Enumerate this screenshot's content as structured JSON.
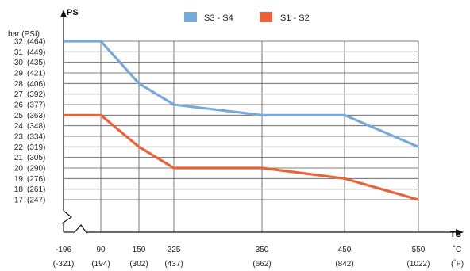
{
  "chart_data": {
    "type": "line",
    "y_axis": {
      "title": "PS",
      "unit_label": "bar (PSI)",
      "ticks": [
        {
          "bar": 32,
          "psi": 464
        },
        {
          "bar": 31,
          "psi": 449
        },
        {
          "bar": 30,
          "psi": 435
        },
        {
          "bar": 29,
          "psi": 421
        },
        {
          "bar": 28,
          "psi": 406
        },
        {
          "bar": 27,
          "psi": 392
        },
        {
          "bar": 26,
          "psi": 377
        },
        {
          "bar": 25,
          "psi": 363
        },
        {
          "bar": 24,
          "psi": 348
        },
        {
          "bar": 23,
          "psi": 334
        },
        {
          "bar": 22,
          "psi": 319
        },
        {
          "bar": 21,
          "psi": 305
        },
        {
          "bar": 20,
          "psi": 290
        },
        {
          "bar": 19,
          "psi": 276
        },
        {
          "bar": 18,
          "psi": 261
        },
        {
          "bar": 17,
          "psi": 247
        }
      ]
    },
    "x_axis": {
      "title": "TS",
      "unit_c": "˚C",
      "unit_f": "(˚F)",
      "ticks": [
        {
          "c": -196,
          "f": -321
        },
        {
          "c": 90,
          "f": 194
        },
        {
          "c": 150,
          "f": 302
        },
        {
          "c": 225,
          "f": 437
        },
        {
          "c": 350,
          "f": 662
        },
        {
          "c": 450,
          "f": 842
        },
        {
          "c": 550,
          "f": 1022
        }
      ]
    },
    "series": [
      {
        "name": "S3 - S4",
        "color": "#74a9d8",
        "points": [
          {
            "x": -196,
            "y": 32
          },
          {
            "x": 90,
            "y": 32
          },
          {
            "x": 150,
            "y": 28
          },
          {
            "x": 225,
            "y": 26
          },
          {
            "x": 350,
            "y": 25
          },
          {
            "x": 450,
            "y": 25
          },
          {
            "x": 550,
            "y": 22
          }
        ]
      },
      {
        "name": "S1 - S2",
        "color": "#e8623a",
        "points": [
          {
            "x": -196,
            "y": 25
          },
          {
            "x": 90,
            "y": 25
          },
          {
            "x": 150,
            "y": 22
          },
          {
            "x": 225,
            "y": 20
          },
          {
            "x": 350,
            "y": 20
          },
          {
            "x": 450,
            "y": 19
          },
          {
            "x": 550,
            "y": 17
          }
        ]
      }
    ],
    "grid": true,
    "legend_position": "top-center"
  }
}
